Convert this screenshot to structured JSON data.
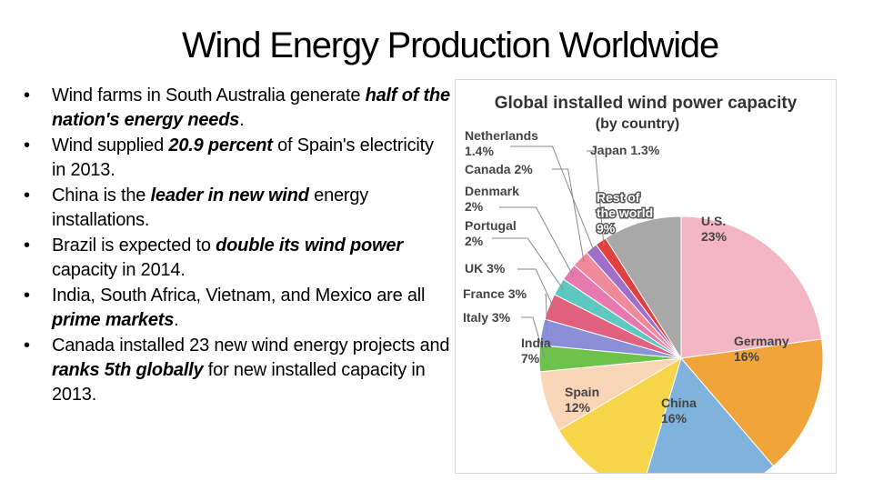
{
  "title": "Wind Energy Production Worldwide",
  "bullets": [
    {
      "parts": [
        {
          "t": "Wind farms in South Australia generate ",
          "em": false
        },
        {
          "t": "half of the nation's energy needs",
          "em": true
        },
        {
          "t": ".",
          "em": false
        }
      ]
    },
    {
      "parts": [
        {
          "t": "Wind supplied ",
          "em": false
        },
        {
          "t": "20.9 percent",
          "em": true
        },
        {
          "t": " of Spain's electricity in 2013.",
          "em": false
        }
      ]
    },
    {
      "parts": [
        {
          "t": "China is the ",
          "em": false
        },
        {
          "t": "leader in new wind",
          "em": true
        },
        {
          "t": " energy installations.",
          "em": false
        }
      ]
    },
    {
      "parts": [
        {
          "t": "Brazil is expected to ",
          "em": false
        },
        {
          "t": "double its wind power ",
          "em": true
        },
        {
          "t": " capacity in 2014.",
          "em": false
        }
      ]
    },
    {
      "parts": [
        {
          "t": "India, South Africa, Vietnam, and Mexico are all ",
          "em": false
        },
        {
          "t": "prime markets",
          "em": true
        },
        {
          "t": ".",
          "em": false
        }
      ]
    },
    {
      "parts": [
        {
          "t": "Canada installed 23 new wind energy projects and ",
          "em": false
        },
        {
          "t": "ranks 5th globally",
          "em": true
        },
        {
          "t": " for new installed capacity in 2013.",
          "em": false
        }
      ]
    }
  ],
  "chart_data": {
    "type": "pie",
    "title": "Global installed wind power capacity",
    "subtitle": "(by country)",
    "slices": [
      {
        "name": "U.S.",
        "value": 23,
        "label": "23%",
        "color": "#f4b6c2"
      },
      {
        "name": "Germany",
        "value": 16,
        "label": "16%",
        "color": "#f0a43a"
      },
      {
        "name": "China",
        "value": 16,
        "label": "16%",
        "color": "#7fb2dc"
      },
      {
        "name": "Spain",
        "value": 12,
        "label": "12%",
        "color": "#f7d54a"
      },
      {
        "name": "India",
        "value": 7,
        "label": "7%",
        "color": "#f9d6b8"
      },
      {
        "name": "Italy",
        "value": 3,
        "label": "3%",
        "color": "#6cc24a"
      },
      {
        "name": "France",
        "value": 3,
        "label": "3%",
        "color": "#8a8fd8"
      },
      {
        "name": "UK",
        "value": 3,
        "label": "3%",
        "color": "#e0607e"
      },
      {
        "name": "Portugal",
        "value": 2,
        "label": "2%",
        "color": "#5ec8c0"
      },
      {
        "name": "Denmark",
        "value": 2,
        "label": "2%",
        "color": "#e878b0"
      },
      {
        "name": "Canada",
        "value": 2,
        "label": "2%",
        "color": "#f08a9a"
      },
      {
        "name": "Netherlands",
        "value": 1.4,
        "label": "1.4%",
        "color": "#a070c8"
      },
      {
        "name": "Japan",
        "value": 1.3,
        "label": "1.3%",
        "color": "#e04040"
      },
      {
        "name": "Rest of the world",
        "value": 9,
        "label": "9%",
        "color": "#a8a8a8"
      }
    ]
  }
}
